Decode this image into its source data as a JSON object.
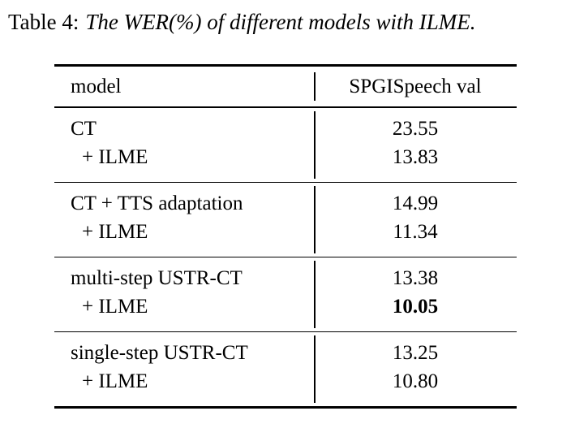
{
  "title": {
    "label": "Table 4:",
    "caption": "The WER(%) of different models with ILME."
  },
  "table": {
    "header": {
      "model_col": "model",
      "value_col": "SPGISpeech val"
    },
    "sections": [
      {
        "rows": [
          {
            "model": "CT",
            "model_style": "row-model",
            "value": "23.55",
            "value_style": "row-value"
          },
          {
            "model": "+ ILME",
            "model_style": "row-model indented",
            "value": "13.83",
            "value_style": "row-value"
          }
        ]
      },
      {
        "rows": [
          {
            "model": "CT + TTS adaptation",
            "model_style": "row-model",
            "value": "14.99",
            "value_style": "row-value"
          },
          {
            "model": "+ ILME",
            "model_style": "row-model indented",
            "value": "11.34",
            "value_style": "row-value"
          }
        ]
      },
      {
        "rows": [
          {
            "model": "multi-step USTR-CT",
            "model_style": "row-model",
            "value": "13.38",
            "value_style": "row-value"
          },
          {
            "model": "+ ILME",
            "model_style": "row-model indented",
            "value": "10.05",
            "value_style": "row-value best"
          }
        ]
      },
      {
        "rows": [
          {
            "model": "single-step USTR-CT",
            "model_style": "row-model",
            "value": "13.25",
            "value_style": "row-value"
          },
          {
            "model": "+ ILME",
            "model_style": "row-model indented",
            "value": "10.80",
            "value_style": "row-value"
          }
        ]
      }
    ]
  },
  "colors": {
    "text": "#000000",
    "background": "#ffffff",
    "rule": "#000000"
  }
}
